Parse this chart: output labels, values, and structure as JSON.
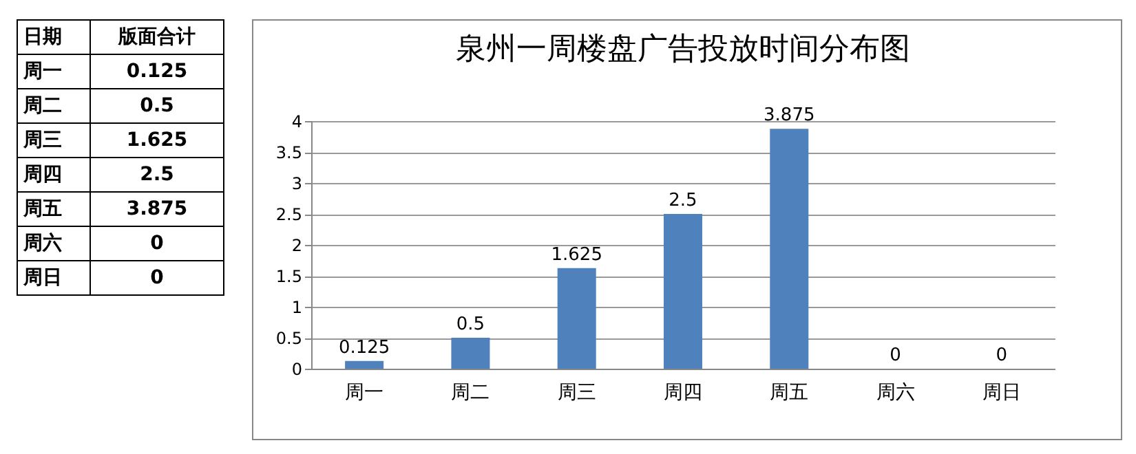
{
  "chart_data": [
    {
      "type": "other",
      "annotations": [
        "日期",
        "版面合计",
        "周一",
        "0.125",
        "周二",
        "0.5",
        "周三",
        "1.625",
        "周四",
        "2.5",
        "周五",
        "3.875",
        "周六",
        "0",
        "周日",
        "0"
      ]
    },
    {
      "type": "bar",
      "title": "泉州一周楼盘广告投放时间分布图",
      "categories": [
        "周一",
        "周二",
        "周三",
        "周四",
        "周五",
        "周六",
        "周日"
      ],
      "values": [
        0.125,
        0.5,
        1.625,
        2.5,
        3.875,
        0,
        0
      ],
      "color": "#4f81bd",
      "ylim": [
        0,
        4
      ],
      "yticks": [
        0,
        0.5,
        1,
        1.5,
        2,
        2.5,
        3,
        3.5,
        4
      ],
      "grid": "y",
      "data_labels": true
    }
  ]
}
